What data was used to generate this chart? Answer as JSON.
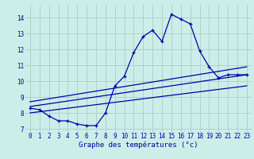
{
  "title": "Graphe des températures (°c)",
  "bg_color": "#cceee8",
  "grid_color": "#aacccc",
  "line_color": "#0000aa",
  "xlim": [
    -0.5,
    23.5
  ],
  "ylim": [
    6.8,
    14.8
  ],
  "yticks": [
    7,
    8,
    9,
    10,
    11,
    12,
    13,
    14
  ],
  "xticks": [
    0,
    1,
    2,
    3,
    4,
    5,
    6,
    7,
    8,
    9,
    10,
    11,
    12,
    13,
    14,
    15,
    16,
    17,
    18,
    19,
    20,
    21,
    22,
    23
  ],
  "series1_x": [
    0,
    1,
    2,
    3,
    4,
    5,
    6,
    7,
    8,
    9,
    10,
    11,
    12,
    13,
    14,
    15,
    16,
    17,
    18,
    19,
    20,
    21,
    22,
    23
  ],
  "series1_y": [
    8.3,
    8.2,
    7.8,
    7.5,
    7.5,
    7.3,
    7.2,
    7.2,
    8.0,
    9.7,
    10.3,
    11.8,
    12.8,
    13.2,
    12.5,
    14.2,
    13.9,
    13.6,
    11.9,
    10.9,
    10.2,
    10.4,
    10.4,
    10.4
  ],
  "series2_x": [
    0,
    23
  ],
  "series2_y": [
    8.4,
    10.4
  ],
  "series3_x": [
    0,
    23
  ],
  "series3_y": [
    8.0,
    9.7
  ],
  "series4_x": [
    0,
    23
  ],
  "series4_y": [
    8.7,
    10.9
  ]
}
